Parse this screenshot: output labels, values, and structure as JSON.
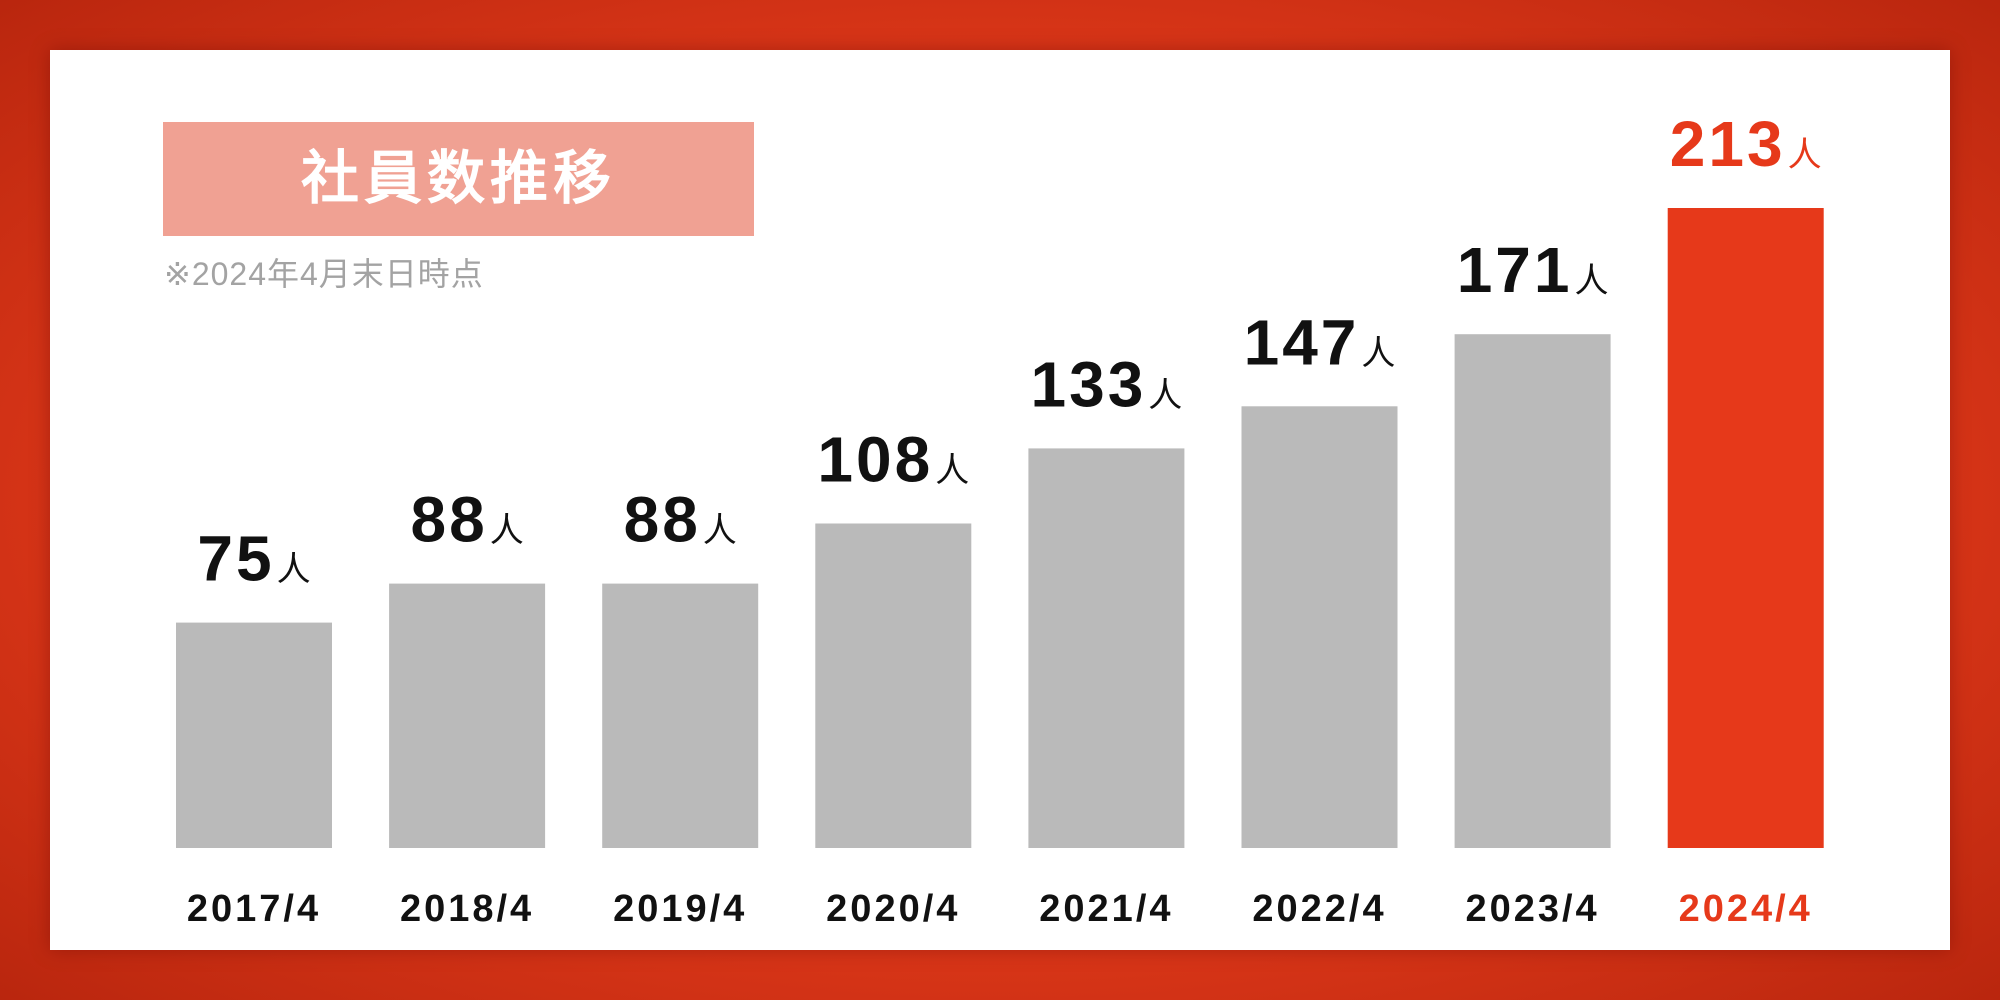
{
  "chart_data": {
    "type": "bar",
    "title": "社員数推移",
    "note": "※2024年4月末日時点",
    "categories": [
      "2017/4",
      "2018/4",
      "2019/4",
      "2020/4",
      "2021/4",
      "2022/4",
      "2023/4",
      "2024/4"
    ],
    "values": [
      75,
      88,
      88,
      108,
      133,
      147,
      171,
      213
    ],
    "unit": "人",
    "highlight_category": "2024/4",
    "grid": false,
    "legend": "none"
  },
  "colors": {
    "frame": "#e0391a",
    "frame_edge": "#b9260e",
    "panel": "#ffffff",
    "title_background": "#f0a193",
    "title_text": "#ffffff",
    "note_text": "#a3a3a3",
    "bar": "#bababa",
    "highlight": "#e6391a",
    "label_text": "#111111"
  }
}
